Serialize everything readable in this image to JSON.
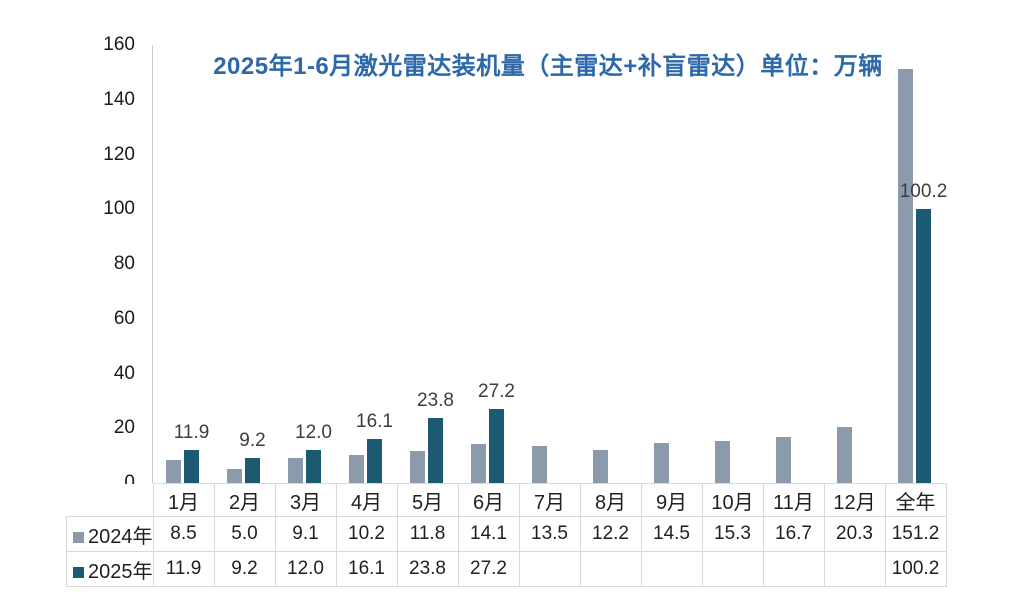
{
  "chart_data": {
    "type": "bar",
    "title": "2025年1-6月激光雷达装机量（主雷达+补盲雷达）单位：万辆",
    "title_color": "#2d68a8",
    "categories": [
      "1月",
      "2月",
      "3月",
      "4月",
      "5月",
      "6月",
      "7月",
      "8月",
      "9月",
      "10月",
      "11月",
      "12月",
      "全年"
    ],
    "series": [
      {
        "name": "2024年",
        "color": "#8b9bac",
        "values": [
          8.5,
          5.0,
          9.1,
          10.2,
          11.8,
          14.1,
          13.5,
          12.2,
          14.5,
          15.3,
          16.7,
          20.3,
          151.2
        ]
      },
      {
        "name": "2025年",
        "color": "#1b5a72",
        "values": [
          11.9,
          9.2,
          12.0,
          16.1,
          23.8,
          27.2,
          null,
          null,
          null,
          null,
          null,
          null,
          100.2
        ]
      }
    ],
    "xlabel": "",
    "ylabel": "",
    "ylim": [
      0,
      160
    ],
    "yticks": [
      0,
      20,
      40,
      60,
      80,
      100,
      120,
      140,
      160
    ],
    "grid": false,
    "legend_position": "table-left",
    "data_labels_on_series": "2025年"
  }
}
